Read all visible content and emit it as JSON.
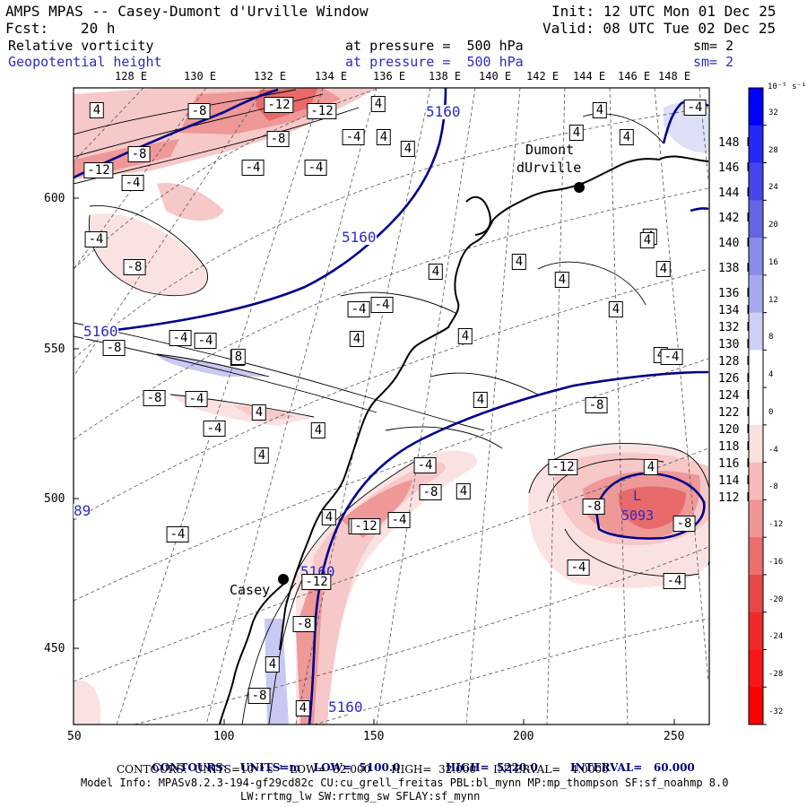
{
  "header": {
    "title": "AMPS MPAS -- Casey-Dumont d'Urville Window",
    "init": "Init: 12 UTC Mon 01 Dec 25",
    "fcst_label": "Fcst:",
    "fcst_value": "20 h",
    "valid": "Valid: 08 UTC Tue 02 Dec 25",
    "field1_name": "Relative vorticity",
    "field1_level": "at pressure =  500 hPa",
    "field1_sm": "sm= 2",
    "field2_name": "Geopotential height",
    "field2_level": "at pressure =  500 hPa",
    "field2_sm": "sm= 2"
  },
  "top_lon_labels": [
    "128 E",
    "130 E",
    "132 E",
    "134 E",
    "136 E",
    "138 E",
    "140 E",
    "142 E",
    "144 E",
    "146 E",
    "148 E"
  ],
  "right_lon_labels": [
    "148 E",
    "146 E",
    "144 E",
    "142 E",
    "140 E",
    "138 E",
    "136 E",
    "134 E",
    "132 E",
    "130 E",
    "128 E",
    "126 E",
    "124 E",
    "122 E",
    "120 E",
    "118 E",
    "116 E",
    "114 E",
    "112 E"
  ],
  "left_axis_labels": [
    "600",
    "550",
    "500",
    "450"
  ],
  "bottom_axis_labels": [
    "50",
    "100",
    "150",
    "200",
    "250"
  ],
  "station_labels": {
    "dumont_line1": "Dumont",
    "dumont_line2": "dUrville",
    "casey": "Casey"
  },
  "low_label": {
    "letter": "L",
    "value": "5093"
  },
  "height_labels": [
    "5160",
    "5160",
    "5160",
    "5160",
    "5160",
    "89"
  ],
  "vort_boxes": [
    "4",
    "-8",
    "-12",
    "-12",
    "4",
    "-8",
    "-4",
    "4",
    "4",
    "-8",
    "-12",
    "-4",
    "-4",
    "-4",
    "-4",
    "-8",
    "-4",
    "-4",
    "4",
    "4",
    "4",
    "4",
    "4",
    "4",
    "4",
    "4",
    "-4",
    "-4",
    "-8",
    "4",
    "-8",
    "-4",
    "-4",
    "4",
    "4",
    "4",
    "4",
    "4",
    "4",
    "4",
    "4",
    "-4",
    "-8",
    "-4",
    "-12",
    "-8",
    "4",
    "4",
    "-4",
    "-8",
    "-12",
    "-8",
    "-8",
    "-4",
    "-4",
    "-12",
    "-8",
    "4",
    "-4",
    "4",
    "4",
    "-8",
    "-4",
    "4",
    "8"
  ],
  "colorbar": {
    "unit_label": "10⁻⁵ s⁻¹",
    "ticks": [
      "32",
      "28",
      "24",
      "20",
      "16",
      "12",
      "8",
      "4",
      "0",
      "-4",
      "-8",
      "-12",
      "-16",
      "-20",
      "-24",
      "-28",
      "-32"
    ],
    "colors": [
      "#0000ff",
      "#2828f5",
      "#4646ec",
      "#6464e4",
      "#8a8ae8",
      "#a8a8ee",
      "#cfcff5",
      "#ffffff",
      "#ffffff",
      "#fbe0e0",
      "#f6baba",
      "#f19494",
      "#ec6e6e",
      "#e84848",
      "#f02a2a",
      "#f81616",
      "#ff0000"
    ]
  },
  "footer": {
    "line1_label": "CONTOURS:",
    "line1_units": "UNITS=m",
    "line1_low": "LOW=  5100.0",
    "line1_high": "HIGH=  5220.0",
    "line1_interval": "INTERVAL=   60.000",
    "line2": "CONTOURS:  UNITS=10⁻⁵ s⁻¹  LOW= -32.000      HIGH=  32.000     INTERVAL=   4.0000",
    "line3": "Model Info: MPASv8.2.3-194-gf29cd82c CU:cu_grell_freitas PBL:bl_mynn MP:mp_thompson SF:sf_noahmp 8.0",
    "line4": "LW:rrtmg_lw SW:rrtmg_sw SFLAY:sf_mynn"
  }
}
